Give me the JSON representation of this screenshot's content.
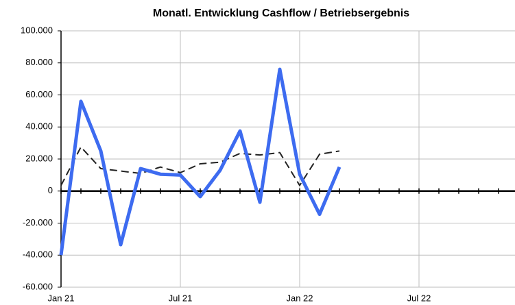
{
  "chart_data": {
    "type": "line",
    "title": "Monatl. Entwicklung Cashflow / Betriebsergebnis",
    "categories": [
      "Jan 21",
      null,
      null,
      null,
      null,
      null,
      "Jul 21",
      null,
      null,
      null,
      null,
      null,
      "Jan 22",
      null,
      null,
      null,
      null,
      null,
      "Jul 22",
      null,
      null,
      null,
      null,
      null
    ],
    "series": [
      {
        "color": "#3d6bf0",
        "style": "solid",
        "values": [
          -40000,
          56000,
          25000,
          -33500,
          14000,
          10500,
          10000,
          -3500,
          13000,
          37500,
          -7000,
          76000,
          10500,
          -14500,
          15000,
          null,
          null,
          null,
          null,
          null,
          null,
          null,
          null,
          null
        ]
      },
      {
        "color": "#222222",
        "style": "dashed",
        "values": [
          3500,
          27500,
          14000,
          12500,
          11000,
          15000,
          11500,
          17000,
          18000,
          23500,
          22500,
          24000,
          3500,
          23000,
          25000,
          null,
          null,
          null,
          null,
          null,
          null,
          null,
          null,
          null
        ]
      }
    ],
    "ylim": [
      -60000,
      100000
    ],
    "yticks": [
      {
        "value": -60000,
        "label": "-60.000"
      },
      {
        "value": -40000,
        "label": "-40.000"
      },
      {
        "value": -20000,
        "label": "-20.000"
      },
      0,
      {
        "value": 20000,
        "label": "20.000"
      },
      {
        "value": 40000,
        "label": "40.000"
      },
      {
        "value": 60000,
        "label": "60.000"
      },
      {
        "value": 80000,
        "label": "80.000"
      },
      {
        "value": 100000,
        "label": "100.000"
      }
    ],
    "grid": true
  }
}
